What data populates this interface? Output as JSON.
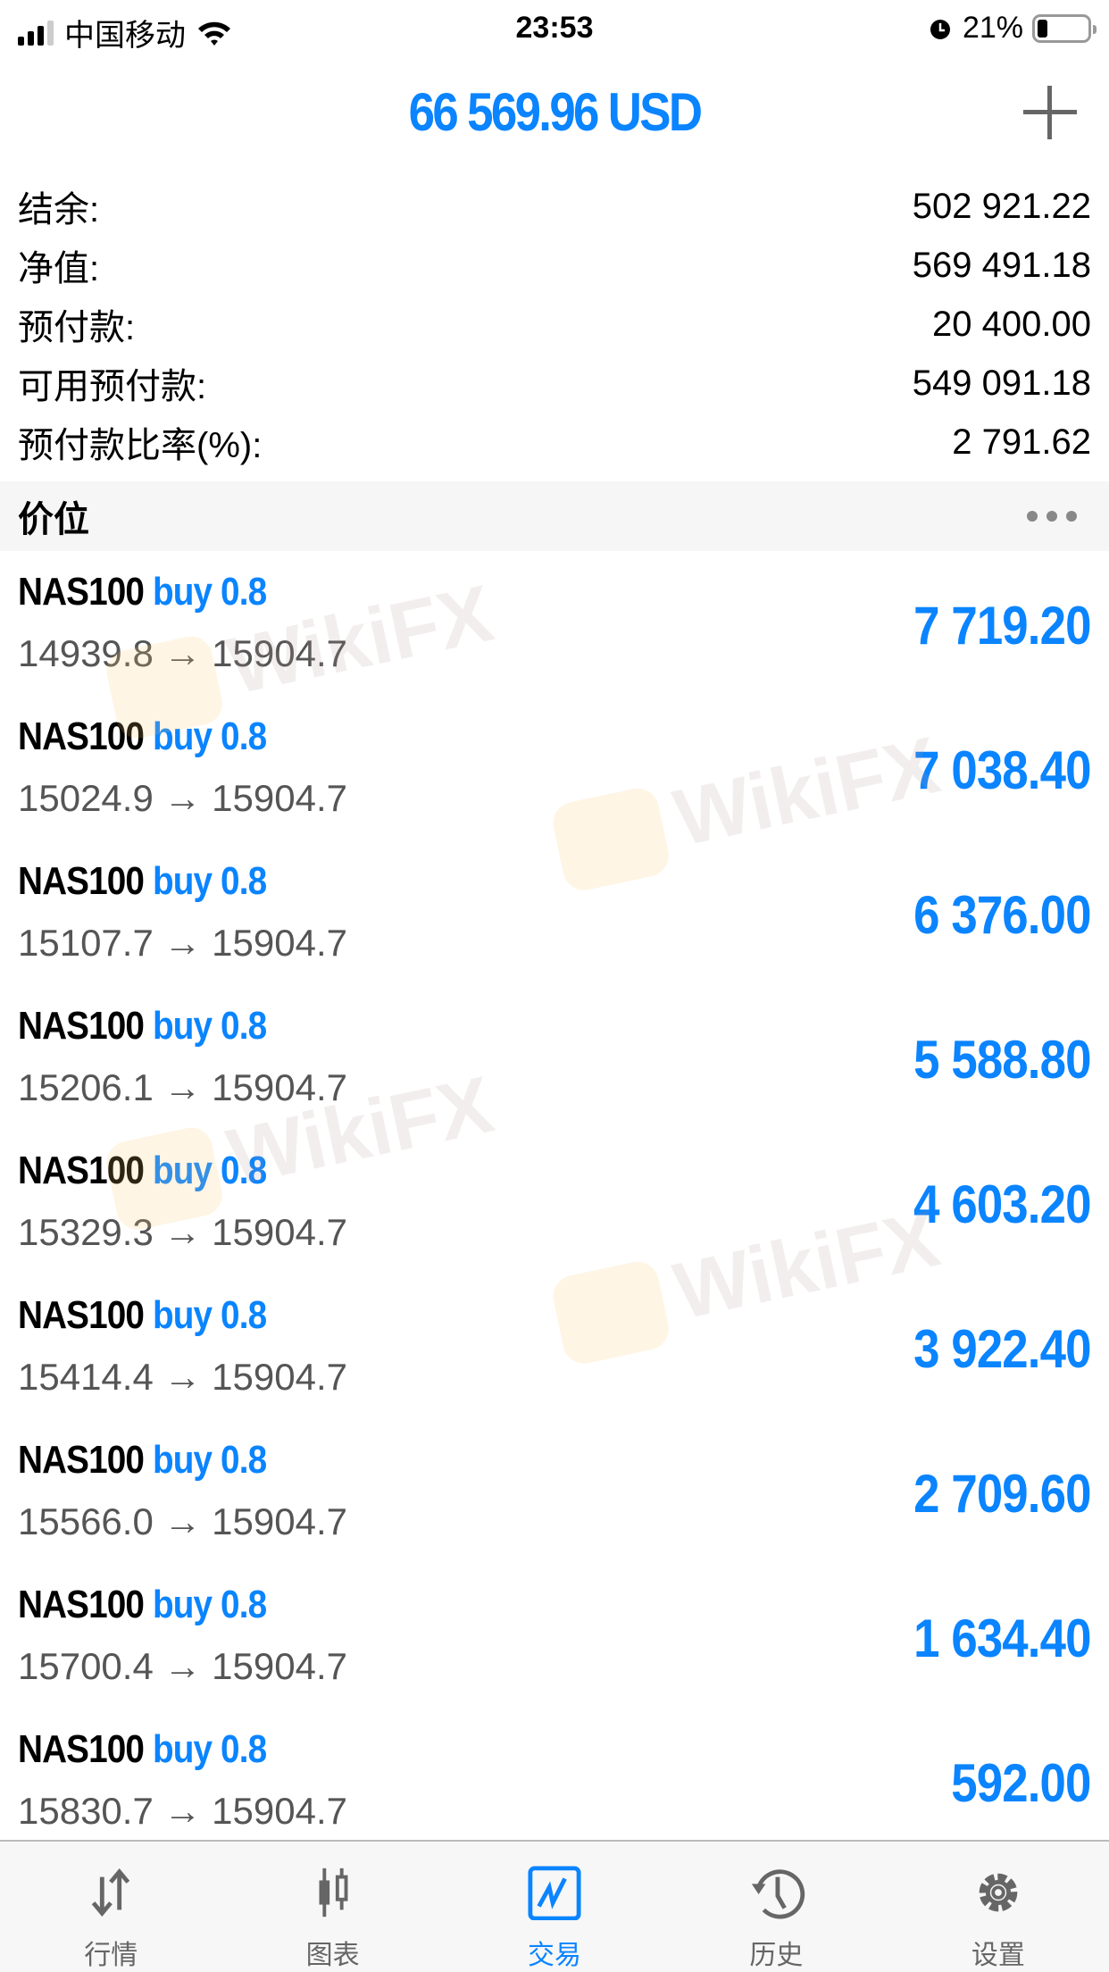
{
  "status_bar": {
    "carrier": "中国移动",
    "time": "23:53",
    "battery": "21%",
    "battery_level": 0.21
  },
  "header": {
    "title": "66 569.96 USD"
  },
  "account": [
    {
      "label": "结余:",
      "value": "502 921.22"
    },
    {
      "label": "净值:",
      "value": "569 491.18"
    },
    {
      "label": "预付款:",
      "value": "20 400.00"
    },
    {
      "label": "可用预付款:",
      "value": "549 091.18"
    },
    {
      "label": "预付款比率(%):",
      "value": "2 791.62"
    }
  ],
  "section": {
    "title": "价位"
  },
  "positions": [
    {
      "symbol": "NAS100",
      "type": "buy 0.8",
      "prices": "14939.8 → 15904.7",
      "profit": "7 719.20"
    },
    {
      "symbol": "NAS100",
      "type": "buy 0.8",
      "prices": "15024.9 → 15904.7",
      "profit": "7 038.40"
    },
    {
      "symbol": "NAS100",
      "type": "buy 0.8",
      "prices": "15107.7 → 15904.7",
      "profit": "6 376.00"
    },
    {
      "symbol": "NAS100",
      "type": "buy 0.8",
      "prices": "15206.1 → 15904.7",
      "profit": "5 588.80"
    },
    {
      "symbol": "NAS100",
      "type": "buy 0.8",
      "prices": "15329.3 → 15904.7",
      "profit": "4 603.20"
    },
    {
      "symbol": "NAS100",
      "type": "buy 0.8",
      "prices": "15414.4 → 15904.7",
      "profit": "3 922.40"
    },
    {
      "symbol": "NAS100",
      "type": "buy 0.8",
      "prices": "15566.0 → 15904.7",
      "profit": "2 709.60"
    },
    {
      "symbol": "NAS100",
      "type": "buy 0.8",
      "prices": "15700.4 → 15904.7",
      "profit": "1 634.40"
    },
    {
      "symbol": "NAS100",
      "type": "buy 0.8",
      "prices": "15830.7 → 15904.7",
      "profit": "592.00"
    }
  ],
  "watermark": "WikiFX",
  "tabs": [
    {
      "label": "行情",
      "icon": "quotes-arrows-icon"
    },
    {
      "label": "图表",
      "icon": "candlestick-chart-icon"
    },
    {
      "label": "交易",
      "icon": "trade-chart-icon",
      "active": true
    },
    {
      "label": "历史",
      "icon": "history-clock-icon"
    },
    {
      "label": "设置",
      "icon": "gear-icon"
    }
  ],
  "colors": {
    "accent": "#0a84ff",
    "tab_inactive": "#666666"
  }
}
